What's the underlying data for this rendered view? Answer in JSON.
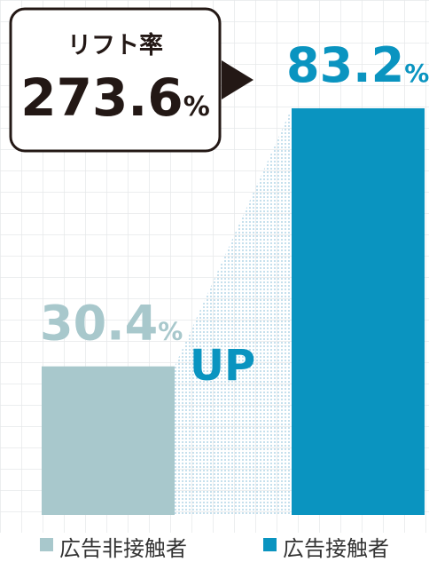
{
  "chart_data": {
    "type": "bar",
    "categories": [
      "広告非接触者",
      "広告接触者"
    ],
    "values": [
      30.4,
      83.2
    ],
    "value_labels": [
      "30.4%",
      "83.2%"
    ],
    "colors": [
      "#a8c8cc",
      "#0a94c0"
    ],
    "ylim": [
      0,
      100
    ],
    "annotations": {
      "lift_label": "リフト率",
      "lift_value": "273.6%",
      "up": "UP"
    }
  }
}
